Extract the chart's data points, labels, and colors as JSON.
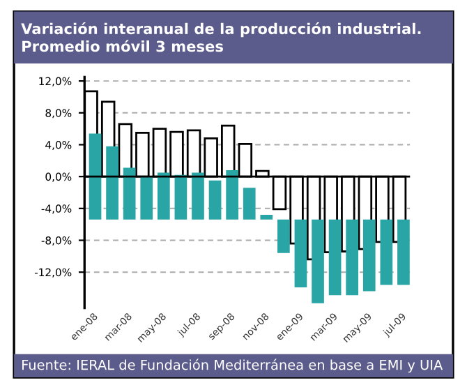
{
  "chart_data": {
    "type": "bar",
    "title": "Variación interanual de la producción industrial.\nPromedio móvil 3 meses",
    "categories": [
      "ene-08",
      null,
      "mar-08",
      null,
      "may-08",
      null,
      "jul-08",
      null,
      "sep-08",
      null,
      "nov-08",
      null,
      "ene-09",
      null,
      "mar-09",
      null,
      "may-09",
      null,
      "jul-09"
    ],
    "series": [
      {
        "color": "#ffffff",
        "values": [
          10.7,
          9.4,
          6.6,
          5.5,
          6.0,
          5.6,
          5.8,
          4.8,
          6.4,
          4.1,
          0.7,
          -4.1,
          -8.4,
          -10.4,
          -9.5,
          -9.4,
          -9.1,
          -8.2,
          -8.2
        ]
      },
      {
        "color": "#2aa5a5",
        "base": [
          -5.4,
          -5.4,
          -5.4,
          -5.4,
          -5.4,
          -5.4,
          -5.4,
          -5.4,
          -5.4,
          -5.4,
          -5.4,
          -5.4,
          -5.4,
          -5.4,
          -5.4,
          -5.4,
          -5.4,
          -5.4,
          -5.4
        ],
        "values": [
          10.8,
          9.2,
          6.5,
          5.4,
          5.9,
          5.6,
          5.9,
          4.9,
          6.2,
          4.0,
          0.6,
          -4.2,
          -8.5,
          -10.5,
          -9.5,
          -9.5,
          -9.0,
          -8.2,
          -8.2
        ]
      }
    ],
    "ylim": [
      -16.5,
      12.5
    ],
    "yticks": [
      {
        "value": -12,
        "label": "-12,0%"
      },
      {
        "value": -8,
        "label": "-8,0%"
      },
      {
        "value": -4,
        "label": "-4,0%"
      },
      {
        "value": 0,
        "label": "0,0%"
      },
      {
        "value": 4,
        "label": "4,0%"
      },
      {
        "value": 8,
        "label": "8,0%"
      },
      {
        "value": 12,
        "label": "12,0%"
      }
    ],
    "grid": "y",
    "ref_lines": [
      {
        "axis": "y",
        "value": 0,
        "color": "#000000"
      }
    ],
    "annotations": [
      "Fuente: IERAL de Fundación Mediterránea en base a EMI y UIA"
    ]
  }
}
